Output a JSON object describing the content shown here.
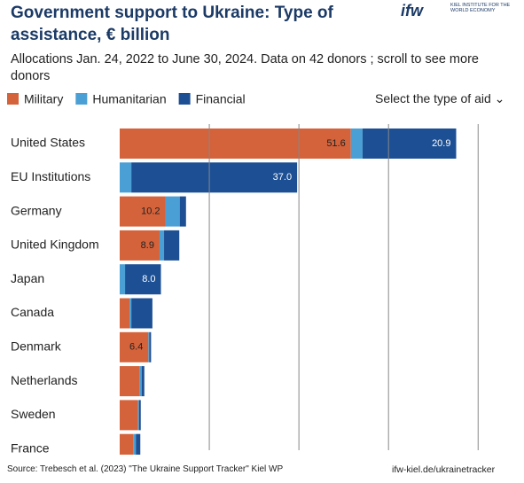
{
  "chart_data": {
    "type": "stacked-bar-horizontal",
    "title": "Government support to Ukraine:  Type of assistance, € billion",
    "subtitle": "Allocations Jan. 24, 2022 to June 30, 2024. Data on 42 donors ; scroll to see more donors",
    "dropdown": "Select the type of aid",
    "logo": "ifw",
    "logo_text": "KIEL INSTITUTE FOR THE WORLD ECONOMY",
    "source": "Source: Trebesch et al. (2023) \"The Ukraine Support Tracker\" Kiel WP",
    "link": "ifw-kiel.de/ukrainetracker",
    "categories": [
      "United States",
      "EU Institutions",
      "Germany",
      "United Kingdom",
      "Japan",
      "Canada",
      "Denmark",
      "Netherlands",
      "Sweden",
      "France"
    ],
    "series": [
      {
        "name": "Military",
        "color": "#d4623a",
        "label_color": "#222222",
        "values": [
          51.6,
          0,
          10.2,
          8.9,
          0,
          2.2,
          6.4,
          4.5,
          4.1,
          3.0
        ],
        "value_labels": [
          "51.6",
          null,
          "10.2",
          "8.9",
          null,
          null,
          "6.4",
          null,
          null,
          null
        ]
      },
      {
        "name": "Humanitarian",
        "color": "#4a9fd4",
        "label_color": "#ffffff",
        "values": [
          2.6,
          2.6,
          3.2,
          1.0,
          1.2,
          0.4,
          0.2,
          0.4,
          0.2,
          0.6
        ],
        "value_labels": [
          null,
          null,
          null,
          null,
          null,
          null,
          null,
          null,
          null,
          null
        ]
      },
      {
        "name": "Financial",
        "color": "#1c4f94",
        "label_color": "#ffffff",
        "values": [
          20.9,
          37.0,
          1.4,
          3.4,
          8.0,
          4.7,
          0.4,
          0.6,
          0.4,
          1.0
        ],
        "value_labels": [
          "20.9",
          "37.0",
          null,
          null,
          "8.0",
          null,
          null,
          null,
          null,
          null
        ]
      }
    ],
    "xlim": [
      0,
      94
    ],
    "xticks": [
      20,
      40,
      60,
      80
    ],
    "grid": true
  }
}
